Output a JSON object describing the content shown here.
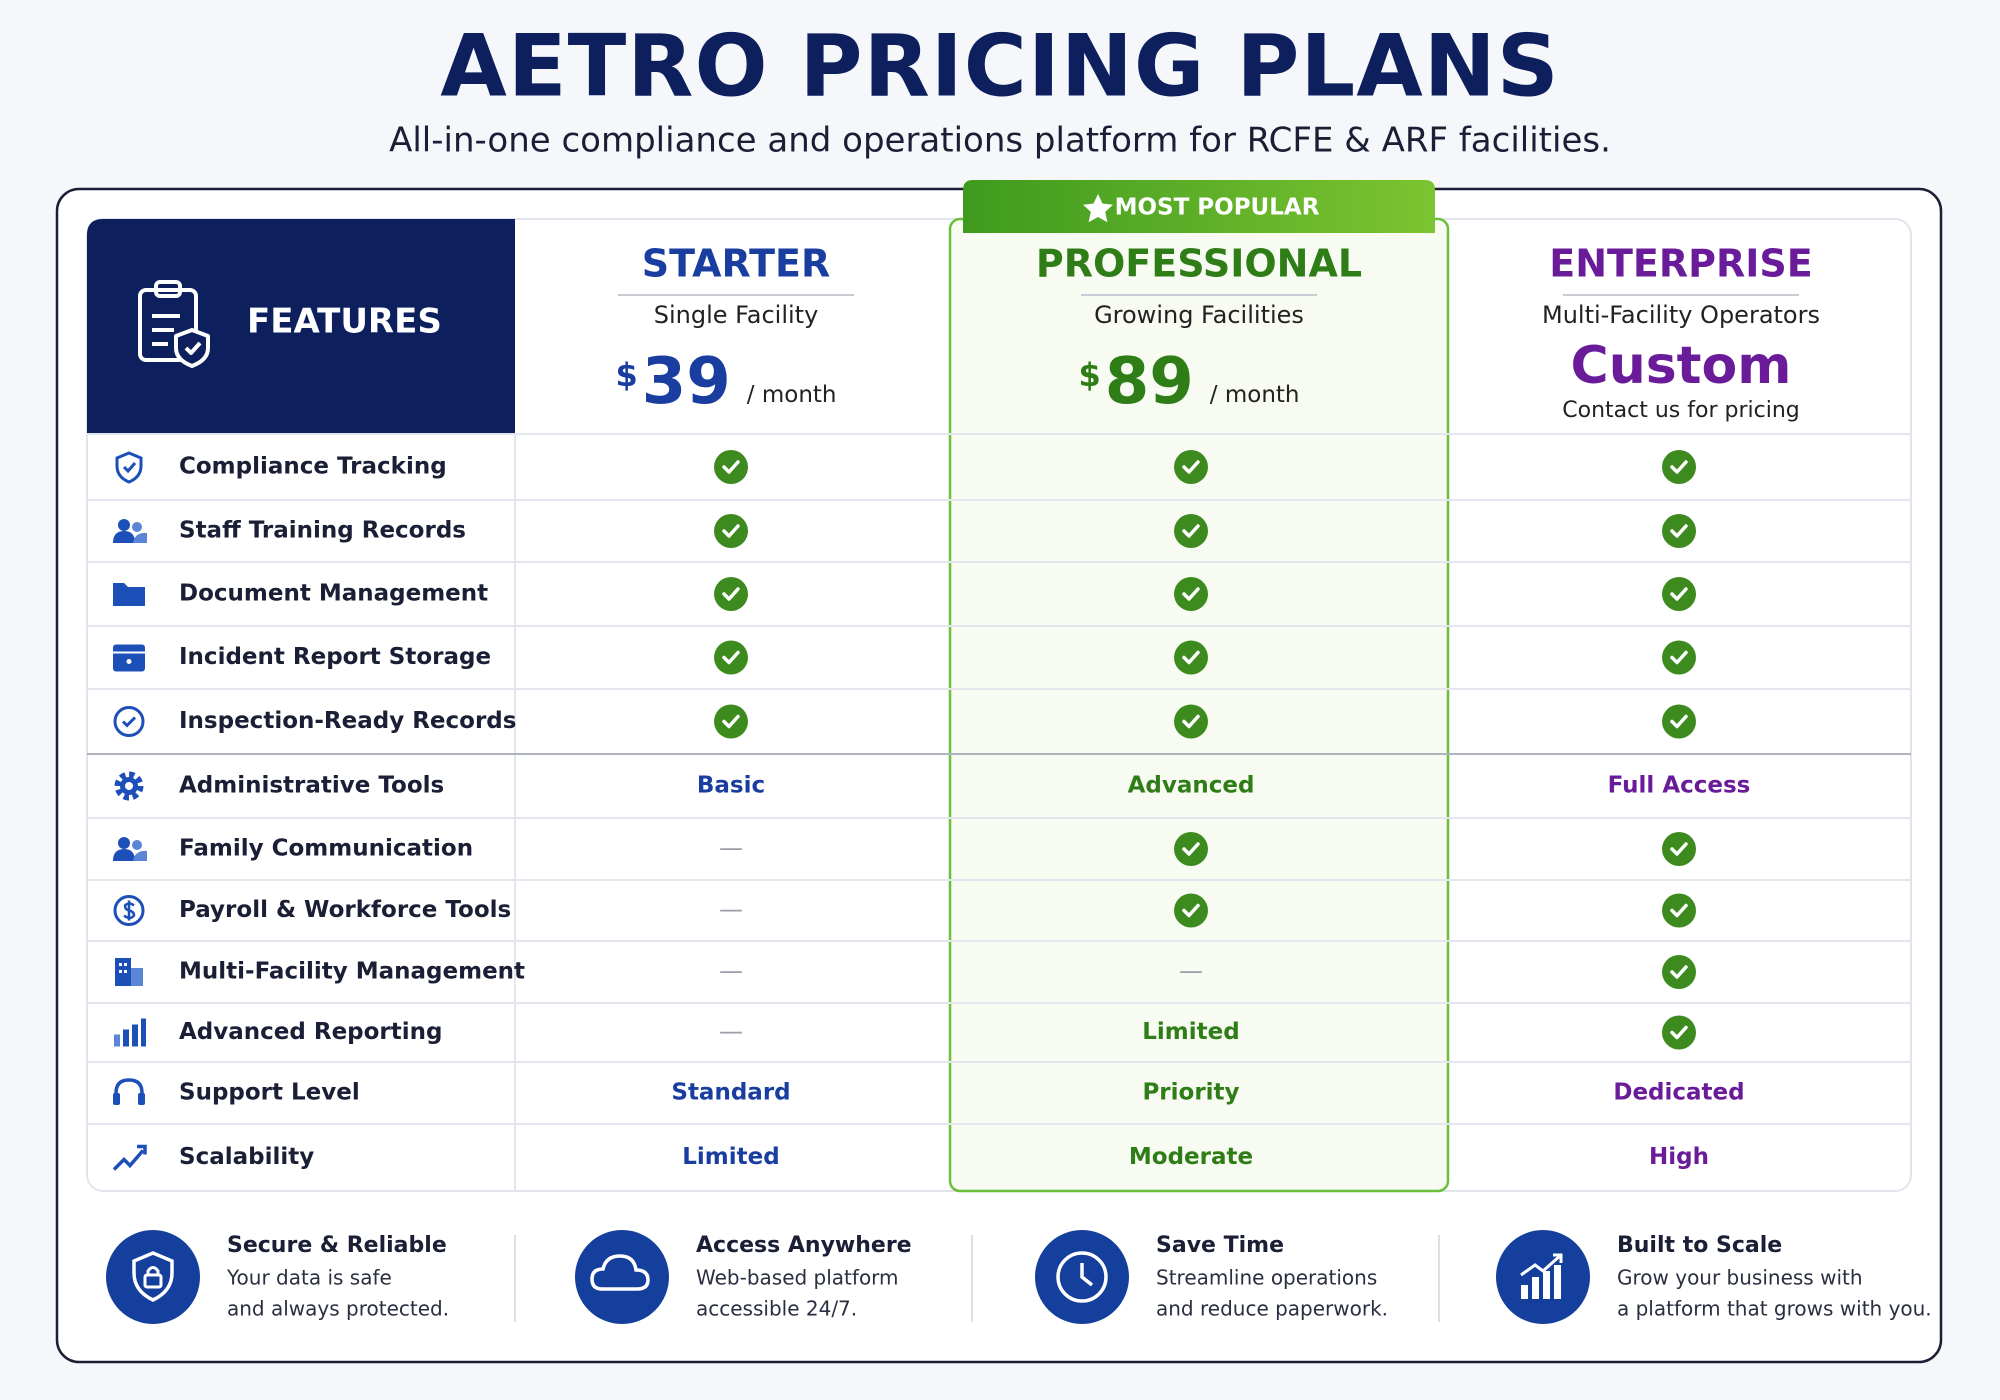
{
  "header": {
    "title": "AETRO PRICING PLANS",
    "subtitle": "All-in-one compliance and operations platform for RCFE & ARF facilities."
  },
  "table": {
    "features_label": "FEATURES",
    "badge": "MOST POPULAR",
    "plans": [
      {
        "name": "STARTER",
        "subtitle": "Single Facility",
        "currency": "$",
        "price": 39,
        "period": "/ month"
      },
      {
        "name": "PROFESSIONAL",
        "subtitle": "Growing Facilities",
        "currency": "$",
        "price": 89,
        "period": "/ month"
      },
      {
        "name": "ENTERPRISE",
        "subtitle": "Multi-Facility Operators",
        "price": "Custom",
        "note": "Contact us for pricing"
      }
    ],
    "rows": [
      {
        "feature": "Compliance Tracking",
        "cells": [
          true,
          true,
          true
        ]
      },
      {
        "feature": "Staff Training Records",
        "cells": [
          true,
          true,
          true
        ]
      },
      {
        "feature": "Document Management",
        "cells": [
          true,
          true,
          true
        ]
      },
      {
        "feature": "Incident Report Storage",
        "cells": [
          true,
          true,
          true
        ]
      },
      {
        "feature": "Inspection-Ready Records",
        "cells": [
          true,
          true,
          true
        ]
      },
      {
        "feature": "Administrative Tools",
        "cells": [
          "Basic",
          "Advanced",
          "Full Access"
        ]
      },
      {
        "feature": "Family Communication",
        "cells": [
          "—",
          true,
          true
        ]
      },
      {
        "feature": "Payroll & Workforce Tools",
        "cells": [
          "—",
          true,
          true
        ]
      },
      {
        "feature": "Multi-Facility Management",
        "cells": [
          "—",
          "—",
          true
        ]
      },
      {
        "feature": "Advanced Reporting",
        "cells": [
          "—",
          "Limited",
          true
        ]
      },
      {
        "feature": "Support Level",
        "cells": [
          "Standard",
          "Priority",
          "Dedicated"
        ]
      },
      {
        "feature": "Scalability",
        "cells": [
          "Limited",
          "Moderate",
          "High"
        ]
      }
    ]
  },
  "footer": {
    "items": [
      {
        "title": "Secure & Reliable",
        "lines": [
          "Your data is safe",
          "and always protected."
        ]
      },
      {
        "title": "Access Anywhere",
        "lines": [
          "Web-based platform",
          "accessible 24/7."
        ]
      },
      {
        "title": "Save Time",
        "lines": [
          "Streamline operations",
          "and reduce paperwork."
        ]
      },
      {
        "title": "Built to Scale",
        "lines": [
          "Grow your business with",
          "a platform that grows with you."
        ]
      }
    ]
  }
}
